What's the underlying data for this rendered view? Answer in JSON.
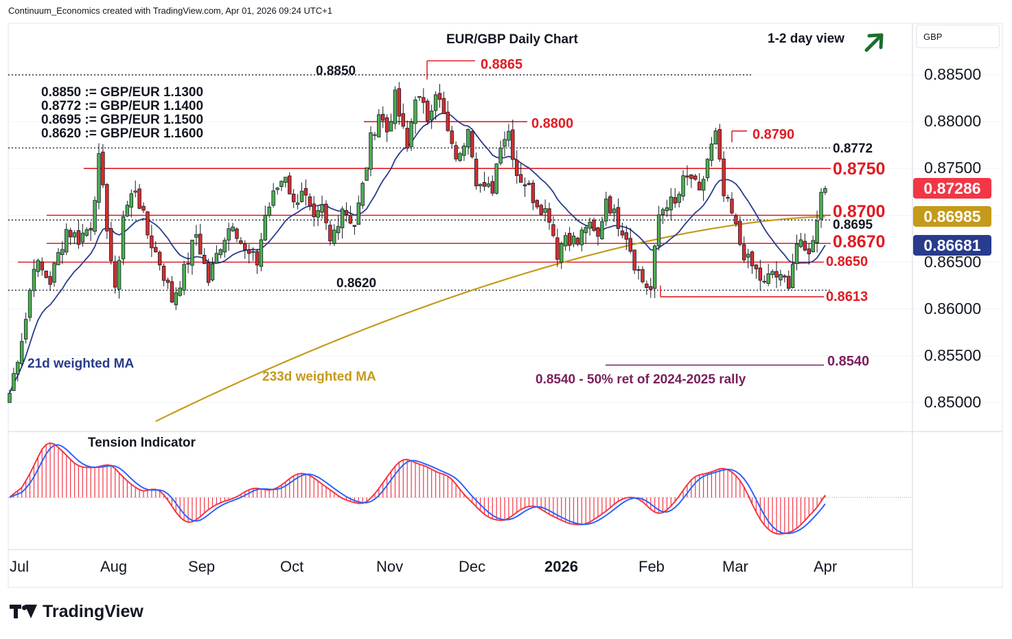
{
  "header": {
    "credit": "Continuum_Economics created with TradingView.com, Apr 01, 2026 09:24 UTC+1"
  },
  "footer": {
    "brand": "TradingView"
  },
  "price_scale": {
    "currency": "GBP",
    "ticks": [
      "0.88500",
      "0.88000",
      "0.87500",
      "0.86500",
      "0.86000",
      "0.85500",
      "0.85000"
    ],
    "tags": [
      {
        "label": "0.87286",
        "color": "#f23645"
      },
      {
        "label": "0.86985",
        "color": "#c59a1a"
      },
      {
        "label": "0.86681",
        "color": "#283b8c"
      }
    ]
  },
  "chart_data": {
    "type": "candlestick",
    "title": "EUR/GBP Daily Chart",
    "view_label": "1-2 day view",
    "view_direction": "up",
    "x_ticks": [
      "Jul",
      "Aug",
      "Sep",
      "Oct",
      "Nov",
      "Dec",
      "2026",
      "Feb",
      "Mar",
      "Apr"
    ],
    "ylim": [
      0.8475,
      0.8905
    ],
    "levels": [
      {
        "value": 0.8865,
        "label": "0.8865",
        "style": "peak",
        "color": "#e01b22"
      },
      {
        "value": 0.885,
        "label": "0.8850",
        "style": "dotted",
        "color": "#131722"
      },
      {
        "value": 0.88,
        "label": "0.8800",
        "style": "short",
        "color": "#e01b22"
      },
      {
        "value": 0.879,
        "label": "0.8790",
        "style": "peak",
        "color": "#e01b22"
      },
      {
        "value": 0.8772,
        "label": "0.8772",
        "style": "dotted",
        "color": "#131722"
      },
      {
        "value": 0.875,
        "label": "0.8750",
        "style": "solid",
        "color": "#e01b22"
      },
      {
        "value": 0.87,
        "label": "0.8700",
        "style": "solid",
        "color": "#e01b22"
      },
      {
        "value": 0.8695,
        "label": "0.8695",
        "style": "dotted",
        "color": "#131722"
      },
      {
        "value": 0.867,
        "label": "0.8670",
        "style": "solid",
        "color": "#e01b22"
      },
      {
        "value": 0.865,
        "label": "0.8650",
        "style": "solid",
        "color": "#e01b22"
      },
      {
        "value": 0.862,
        "label": "0.8620",
        "style": "dotted",
        "color": "#131722"
      },
      {
        "value": 0.8613,
        "label": "0.8613",
        "style": "trough",
        "color": "#e01b22"
      },
      {
        "value": 0.854,
        "label": "0.8540",
        "style": "retracement",
        "color": "#7a1f5c"
      }
    ],
    "retracement_note": "0.8540 - 50% ret of 2024-2025 rally",
    "conversions": [
      "0.8850 := GBP/EUR 1.1300",
      "0.8772 := GBP/EUR 1.1400",
      "0.8695 := GBP/EUR 1.1500",
      "0.8620 := GBP/EUR 1.1600"
    ],
    "ma_labels": {
      "wma21": "21d weighted MA",
      "wma233": "233d weighted MA"
    },
    "indicator_label": "Tension Indicator",
    "close_anchors": [
      [
        0,
        0.851
      ],
      [
        4,
        0.859
      ],
      [
        6,
        0.865
      ],
      [
        10,
        0.863
      ],
      [
        14,
        0.8685
      ],
      [
        17,
        0.8675
      ],
      [
        20,
        0.869
      ],
      [
        22,
        0.8758
      ],
      [
        24,
        0.869
      ],
      [
        26,
        0.8615
      ],
      [
        28,
        0.87
      ],
      [
        31,
        0.873
      ],
      [
        34,
        0.868
      ],
      [
        37,
        0.865
      ],
      [
        40,
        0.861
      ],
      [
        43,
        0.864
      ],
      [
        46,
        0.868
      ],
      [
        49,
        0.863
      ],
      [
        52,
        0.867
      ],
      [
        55,
        0.8695
      ],
      [
        58,
        0.866
      ],
      [
        61,
        0.865
      ],
      [
        63,
        0.87
      ],
      [
        66,
        0.873
      ],
      [
        68,
        0.8745
      ],
      [
        70,
        0.871
      ],
      [
        72,
        0.873
      ],
      [
        75,
        0.869
      ],
      [
        77,
        0.8705
      ],
      [
        79,
        0.867
      ],
      [
        82,
        0.871
      ],
      [
        85,
        0.869
      ],
      [
        87,
        0.873
      ],
      [
        89,
        0.878
      ],
      [
        91,
        0.881
      ],
      [
        93,
        0.879
      ],
      [
        95,
        0.8825
      ],
      [
        98,
        0.877
      ],
      [
        100,
        0.883
      ],
      [
        103,
        0.8805
      ],
      [
        105,
        0.8835
      ],
      [
        107,
        0.8805
      ],
      [
        109,
        0.877
      ],
      [
        111,
        0.876
      ],
      [
        113,
        0.88
      ],
      [
        115,
        0.874
      ],
      [
        117,
        0.8725
      ],
      [
        119,
        0.873
      ],
      [
        121,
        0.878
      ],
      [
        123,
        0.879
      ],
      [
        125,
        0.8745
      ],
      [
        127,
        0.8735
      ],
      [
        129,
        0.872
      ],
      [
        131,
        0.871
      ],
      [
        133,
        0.87
      ],
      [
        135,
        0.866
      ],
      [
        137,
        0.868
      ],
      [
        140,
        0.867
      ],
      [
        142,
        0.869
      ],
      [
        145,
        0.8675
      ],
      [
        147,
        0.872
      ],
      [
        149,
        0.87
      ],
      [
        152,
        0.868
      ],
      [
        154,
        0.865
      ],
      [
        156,
        0.863
      ],
      [
        158,
        0.862
      ],
      [
        160,
        0.87
      ],
      [
        162,
        0.8715
      ],
      [
        164,
        0.871
      ],
      [
        166,
        0.8735
      ],
      [
        168,
        0.874
      ],
      [
        170,
        0.872
      ],
      [
        172,
        0.876
      ],
      [
        174,
        0.8785
      ],
      [
        176,
        0.872
      ],
      [
        178,
        0.87
      ],
      [
        180,
        0.867
      ],
      [
        182,
        0.865
      ],
      [
        184,
        0.864
      ],
      [
        186,
        0.8625
      ],
      [
        188,
        0.864
      ],
      [
        190,
        0.863
      ],
      [
        192,
        0.863
      ],
      [
        194,
        0.867
      ],
      [
        196,
        0.866
      ],
      [
        198,
        0.867
      ],
      [
        200,
        0.873
      ],
      [
        201,
        0.8728
      ]
    ],
    "wma233_range": [
      [
        36,
        0.848
      ],
      [
        201,
        0.86985
      ]
    ],
    "wma21_last": 0.86681
  }
}
